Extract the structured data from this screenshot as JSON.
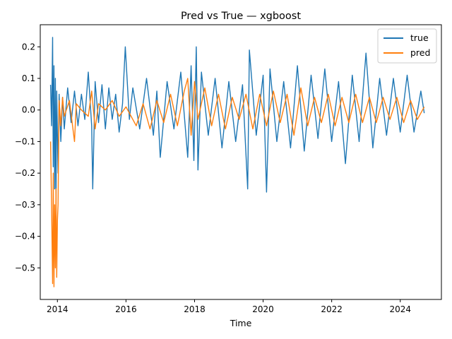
{
  "chart_data": {
    "type": "line",
    "title": "Pred vs True — xgboost",
    "xlabel": "Time",
    "ylabel": "",
    "xlim": [
      2013.5,
      2025.2
    ],
    "ylim": [
      -0.6,
      0.27
    ],
    "x_ticks": [
      2014,
      2016,
      2018,
      2020,
      2022,
      2024
    ],
    "x_tick_labels": [
      "2014",
      "2016",
      "2018",
      "2020",
      "2022",
      "2024"
    ],
    "y_ticks": [
      0.2,
      0.1,
      0.0,
      -0.1,
      -0.2,
      -0.3,
      -0.4,
      -0.5
    ],
    "y_tick_labels": [
      "0.2",
      "0.1",
      "0.0",
      "−0.1",
      "−0.2",
      "−0.3",
      "−0.4",
      "−0.5"
    ],
    "grid": false,
    "legend_position": "top-right",
    "series": [
      {
        "name": "true",
        "color": "#1f77b4",
        "x": [
          2013.8,
          2013.83,
          2013.86,
          2013.88,
          2013.9,
          2013.92,
          2013.94,
          2013.96,
          2013.98,
          2014.0,
          2014.02,
          2014.05,
          2014.1,
          2014.15,
          2014.2,
          2014.3,
          2014.4,
          2014.5,
          2014.6,
          2014.7,
          2014.8,
          2014.9,
          2015.0,
          2015.03,
          2015.1,
          2015.2,
          2015.3,
          2015.4,
          2015.5,
          2015.6,
          2015.7,
          2015.8,
          2015.9,
          2015.98,
          2016.1,
          2016.2,
          2016.4,
          2016.6,
          2016.8,
          2016.9,
          2017.0,
          2017.2,
          2017.4,
          2017.6,
          2017.8,
          2017.9,
          2017.98,
          2018.05,
          2018.1,
          2018.2,
          2018.4,
          2018.6,
          2018.8,
          2019.0,
          2019.2,
          2019.4,
          2019.55,
          2019.6,
          2019.8,
          2020.0,
          2020.1,
          2020.2,
          2020.4,
          2020.6,
          2020.8,
          2021.0,
          2021.2,
          2021.4,
          2021.6,
          2021.8,
          2022.0,
          2022.2,
          2022.4,
          2022.6,
          2022.8,
          2023.0,
          2023.2,
          2023.4,
          2023.6,
          2023.8,
          2024.0,
          2024.2,
          2024.4,
          2024.6,
          2024.7
        ],
        "y": [
          0.08,
          -0.05,
          0.23,
          -0.18,
          0.14,
          -0.25,
          0.1,
          -0.3,
          0.06,
          -0.08,
          -0.2,
          0.05,
          -0.1,
          0.04,
          -0.06,
          0.07,
          -0.04,
          0.06,
          -0.05,
          0.05,
          -0.03,
          0.12,
          -0.05,
          -0.25,
          0.09,
          -0.04,
          0.08,
          -0.06,
          0.07,
          -0.03,
          0.05,
          -0.07,
          0.02,
          0.2,
          -0.03,
          0.07,
          -0.06,
          0.1,
          -0.08,
          0.06,
          -0.15,
          0.09,
          -0.06,
          0.12,
          -0.15,
          0.14,
          -0.16,
          0.2,
          -0.19,
          0.12,
          -0.08,
          0.1,
          -0.12,
          0.09,
          -0.1,
          0.08,
          -0.25,
          0.19,
          -0.08,
          0.11,
          -0.26,
          0.13,
          -0.1,
          0.09,
          -0.12,
          0.14,
          -0.13,
          0.11,
          -0.09,
          0.13,
          -0.1,
          0.09,
          -0.17,
          0.11,
          -0.1,
          0.18,
          -0.12,
          0.1,
          -0.08,
          0.1,
          -0.07,
          0.11,
          -0.07,
          0.06,
          -0.01
        ]
      },
      {
        "name": "pred",
        "color": "#ff7f0e",
        "x": [
          2013.8,
          2013.83,
          2013.86,
          2013.88,
          2013.9,
          2013.92,
          2013.94,
          2013.96,
          2013.98,
          2014.0,
          2014.02,
          2014.05,
          2014.1,
          2014.15,
          2014.2,
          2014.35,
          2014.5,
          2014.55,
          2014.7,
          2014.9,
          2015.0,
          2015.1,
          2015.2,
          2015.4,
          2015.6,
          2015.8,
          2016.0,
          2016.3,
          2016.5,
          2016.7,
          2016.9,
          2017.1,
          2017.3,
          2017.5,
          2017.7,
          2017.8,
          2017.9,
          2018.0,
          2018.1,
          2018.3,
          2018.5,
          2018.7,
          2018.9,
          2019.1,
          2019.3,
          2019.5,
          2019.7,
          2019.9,
          2020.1,
          2020.3,
          2020.5,
          2020.7,
          2020.9,
          2021.1,
          2021.3,
          2021.5,
          2021.7,
          2021.9,
          2022.1,
          2022.3,
          2022.5,
          2022.7,
          2022.9,
          2023.1,
          2023.3,
          2023.5,
          2023.7,
          2023.9,
          2024.1,
          2024.3,
          2024.5,
          2024.7
        ],
        "y": [
          -0.1,
          -0.3,
          -0.55,
          -0.2,
          -0.56,
          -0.3,
          -0.5,
          -0.25,
          -0.53,
          -0.35,
          -0.3,
          0.03,
          -0.05,
          0.04,
          -0.02,
          0.03,
          -0.1,
          0.02,
          0.0,
          -0.02,
          0.06,
          -0.06,
          0.02,
          0.0,
          0.03,
          -0.02,
          0.01,
          -0.05,
          0.02,
          -0.06,
          0.03,
          -0.04,
          0.05,
          -0.05,
          0.06,
          0.1,
          -0.08,
          0.09,
          -0.03,
          0.07,
          -0.05,
          0.05,
          -0.06,
          0.04,
          -0.03,
          0.05,
          -0.06,
          0.05,
          -0.05,
          0.06,
          -0.04,
          0.05,
          -0.08,
          0.07,
          -0.05,
          0.04,
          -0.04,
          0.05,
          -0.05,
          0.04,
          -0.04,
          0.05,
          -0.04,
          0.04,
          -0.04,
          0.04,
          -0.03,
          0.04,
          -0.04,
          0.03,
          -0.03,
          0.01
        ]
      }
    ]
  }
}
